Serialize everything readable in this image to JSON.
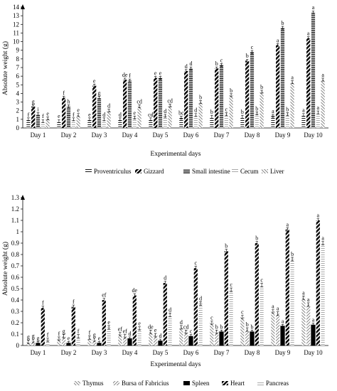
{
  "chart_data": [
    {
      "type": "bar",
      "ylabel": "Absolute weight (g)",
      "xlabel": "Experimental days",
      "ylim": [
        0,
        14
      ],
      "yticks": [
        0,
        1,
        2,
        3,
        4,
        5,
        6,
        7,
        8,
        9,
        10,
        11,
        12,
        13,
        14
      ],
      "ytick_labels": [
        "0",
        "1",
        "2",
        "3",
        "4",
        "5",
        "6",
        "7",
        "8",
        "9",
        "10",
        "11",
        "12",
        "13",
        "14"
      ],
      "grid": false,
      "legend_position": "bottom",
      "categories": [
        "Day 1",
        "Day 2",
        "Day 3",
        "Day 4",
        "Day 5",
        "Day 6",
        "Day 7",
        "Day 8",
        "Day 9",
        "Day 10"
      ],
      "series": [
        {
          "name": "Proventriculus",
          "pattern": "hlines",
          "values": [
            1.0,
            0.8,
            1.0,
            1.0,
            1.0,
            1.2,
            1.3,
            1.3,
            1.4,
            1.5
          ],
          "letters": [
            "f",
            "e",
            "e",
            "d",
            "cd",
            "bc",
            "b",
            "b",
            "a",
            "a"
          ]
        },
        {
          "name": "Gizzard",
          "pattern": "diag-heavy",
          "values": [
            2.5,
            3.5,
            4.9,
            5.6,
            5.8,
            6.6,
            6.9,
            7.8,
            9.6,
            10.4
          ],
          "letters": [
            "g",
            "f",
            "e",
            "de",
            "e",
            "d",
            "b",
            "b",
            "a",
            "a"
          ]
        },
        {
          "name": "Small intestine",
          "pattern": "hlines-heavy",
          "values": [
            1.6,
            2.5,
            3.5,
            5.5,
            5.8,
            6.9,
            7.3,
            8.8,
            11.6,
            13.4
          ],
          "letters": [
            "i",
            "h",
            "g",
            "f",
            "e",
            "d",
            "c",
            "c",
            "b",
            "a"
          ]
        },
        {
          "name": "Cecum",
          "pattern": "hlines-light",
          "values": [
            0.8,
            1.0,
            1.0,
            1.2,
            1.4,
            1.5,
            1.6,
            1.7,
            1.6,
            1.8
          ],
          "letters": [
            "f",
            "f",
            "d",
            "e",
            "d",
            "d",
            "c",
            "b",
            "b",
            "a"
          ]
        },
        {
          "name": "Liver",
          "pattern": "diag-light",
          "values": [
            1.1,
            1.5,
            2.0,
            2.5,
            2.6,
            3.0,
            3.8,
            4.2,
            5.3,
            5.6
          ],
          "letters": [
            "e",
            "e",
            "d",
            "cd",
            "cd",
            "b",
            "b",
            "b",
            "a",
            "a"
          ]
        }
      ]
    },
    {
      "type": "bar",
      "ylabel": "Absolute weight (g)",
      "xlabel": "Experimental days",
      "ylim": [
        0,
        1.3
      ],
      "yticks": [
        0,
        0.1,
        0.2,
        0.3,
        0.4,
        0.5,
        0.6,
        0.7,
        0.8,
        0.9,
        1.0,
        1.1,
        1.2,
        1.3
      ],
      "ytick_labels": [
        "0",
        "0.1",
        "0.2",
        "0.3",
        "0.4",
        "0.5",
        "0.6",
        "0.7",
        "0.8",
        "0.9",
        "1",
        "1.1",
        "1.2",
        "1.3"
      ],
      "grid": false,
      "legend_position": "bottom",
      "categories": [
        "Day 1",
        "Day 2",
        "Day 3",
        "Day 4",
        "Day 5",
        "Day 6",
        "Day 7",
        "Day 8",
        "Day 9",
        "Day 10"
      ],
      "series": [
        {
          "name": "Thymus",
          "pattern": "diag-light",
          "values": [
            0.03,
            0.06,
            0.07,
            0.1,
            0.12,
            0.16,
            0.2,
            0.25,
            0.3,
            0.42
          ],
          "letters": [
            "g",
            "f",
            "f",
            "ef",
            "de",
            "d",
            "c",
            "c",
            "a",
            "a"
          ]
        },
        {
          "name": "Bursa of Fabricius",
          "pattern": "diag-light2",
          "values": [
            0.04,
            0.08,
            0.05,
            0.08,
            0.09,
            0.12,
            0.12,
            0.14,
            0.28,
            0.36
          ],
          "letters": [
            "g",
            "g",
            "g",
            "ef",
            "e",
            "cd",
            "b",
            "b",
            "a",
            "a"
          ]
        },
        {
          "name": "Spleen",
          "pattern": "solid",
          "values": [
            0.02,
            0.02,
            0.02,
            0.06,
            0.04,
            0.08,
            0.12,
            0.12,
            0.17,
            0.18
          ],
          "letters": [
            "g",
            "e",
            "e",
            "d",
            "d",
            "c",
            "b",
            "b",
            "a",
            "a"
          ]
        },
        {
          "name": "Heart",
          "pattern": "diag-heavy",
          "values": [
            0.33,
            0.34,
            0.4,
            0.44,
            0.55,
            0.68,
            0.83,
            0.9,
            1.02,
            1.1
          ],
          "letters": [
            "f",
            "f",
            "ef",
            "de",
            "d",
            "c",
            "b",
            "b",
            "a",
            "a"
          ]
        },
        {
          "name": "Pancreas",
          "pattern": "hlines-light",
          "values": [
            0.05,
            0.08,
            0.16,
            0.15,
            0.27,
            0.37,
            0.49,
            0.53,
            0.76,
            0.9
          ],
          "letters": [
            "f",
            "f",
            "e",
            "e",
            "d",
            "d",
            "c",
            "c",
            "b",
            "a"
          ]
        }
      ]
    }
  ]
}
